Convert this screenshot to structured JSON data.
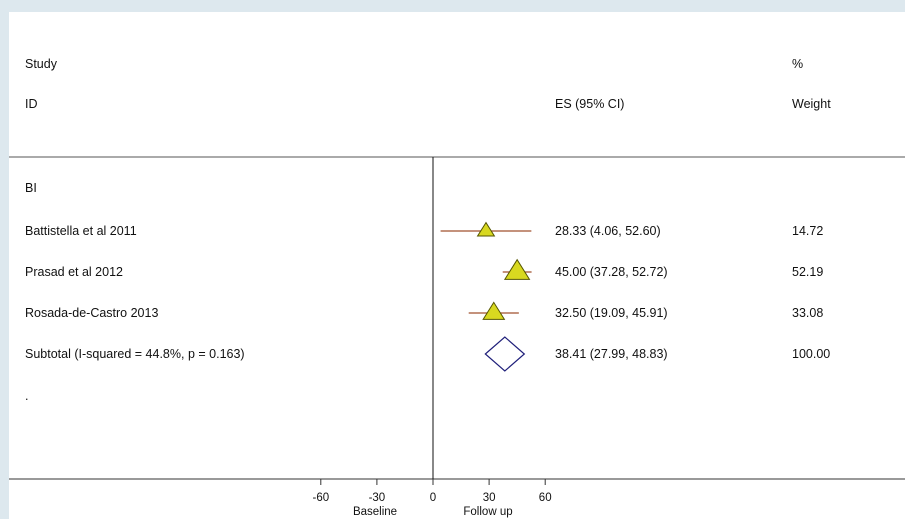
{
  "header": {
    "study_label": "Study",
    "id_label": "ID",
    "es_label": "ES (95% CI)",
    "pct_label": "%",
    "weight_label": "Weight"
  },
  "group_label": "BI",
  "footer_dot": ".",
  "chart_data": {
    "type": "forest",
    "title": "",
    "group": "BI",
    "studies": [
      {
        "id": "Battistella et al 2011",
        "es": 28.33,
        "lower": 4.06,
        "upper": 52.6,
        "ci_text": "28.33 (4.06, 52.60)",
        "weight": 14.72,
        "weight_text": "14.72"
      },
      {
        "id": "Prasad et al 2012",
        "es": 45.0,
        "lower": 37.28,
        "upper": 52.72,
        "ci_text": "45.00 (37.28, 52.72)",
        "weight": 52.19,
        "weight_text": "52.19"
      },
      {
        "id": "Rosada-de-Castro 2013",
        "es": 32.5,
        "lower": 19.09,
        "upper": 45.91,
        "ci_text": "32.50 (19.09, 45.91)",
        "weight": 33.08,
        "weight_text": "33.08"
      }
    ],
    "subtotal": {
      "label": "Subtotal  (I-squared = 44.8%, p = 0.163)",
      "es": 38.41,
      "lower": 27.99,
      "upper": 48.83,
      "ci_text": "38.41 (27.99, 48.83)",
      "weight_text": "100.00"
    },
    "x_ticks": [
      -60,
      -30,
      0,
      30,
      60
    ],
    "x_range": [
      -60,
      60
    ],
    "xlabel_left": "Baseline",
    "xlabel_right": "Follow up",
    "colors": {
      "ci_line": "#a0522d",
      "marker_fill": "#d8d820",
      "marker_stroke": "#555500",
      "diamond": "#1f1f7a",
      "axis": "#111111"
    }
  }
}
